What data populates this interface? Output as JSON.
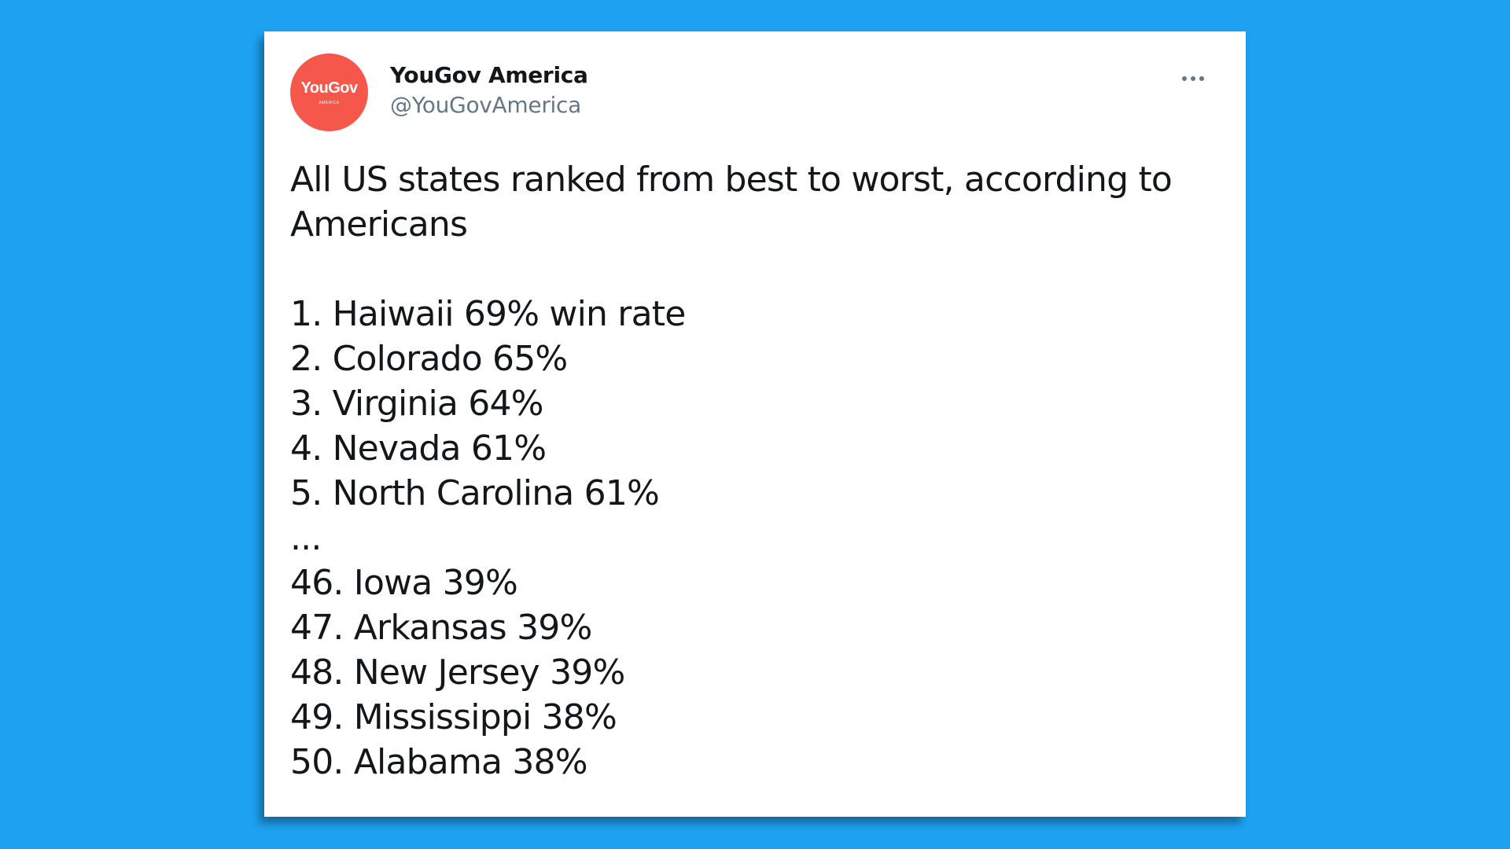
{
  "tweet": {
    "author": {
      "display_name": "YouGov America",
      "handle": "@YouGovAmerica",
      "avatar": {
        "brand_text": "YouGov",
        "sub_text": "AMERICA",
        "color": "#f5574a"
      }
    },
    "more_icon": "more-horizontal-icon",
    "text_intro": "All US states ranked from best to worst, according to Americans",
    "rankings": [
      "1. Haiwaii 69% win rate",
      "2. Colorado 65%",
      "3. Virginia 64%",
      "4. Nevada 61%",
      "5. North Carolina 61%",
      "...",
      "46. Iowa 39%",
      "47. Arkansas 39%",
      "48. New Jersey 39%",
      "49. Mississippi 38%",
      "50. Alabama 38%"
    ]
  },
  "colors": {
    "background": "#1ea1f1",
    "card": "#ffffff",
    "text": "#14171a",
    "secondary_text": "#657786"
  }
}
